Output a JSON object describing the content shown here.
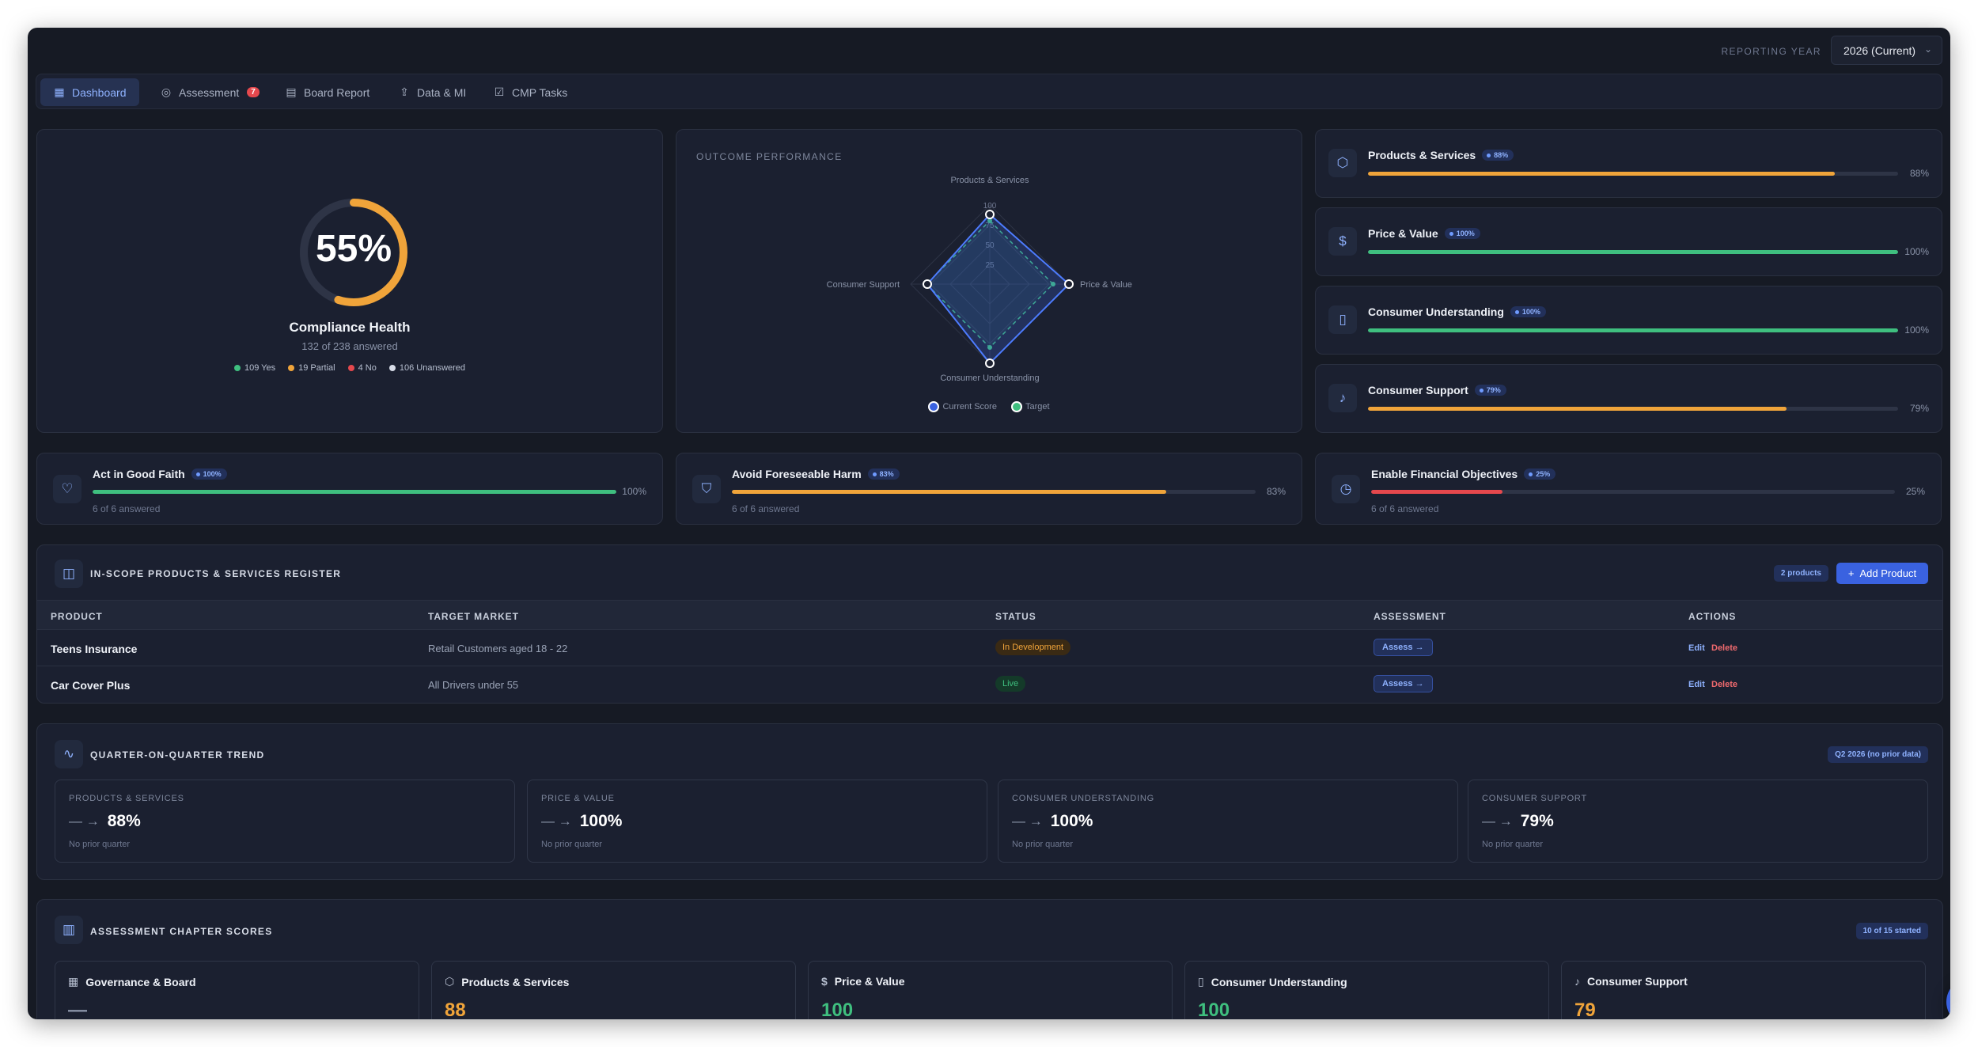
{
  "header": {
    "reporting_year_label": "REPORTING YEAR",
    "reporting_year_value": "2026 (Current)"
  },
  "tabs": [
    {
      "label": "Dashboard",
      "icon": "grid-icon",
      "active": true
    },
    {
      "label": "Assessment",
      "icon": "check-circle-icon",
      "badge": "7"
    },
    {
      "label": "Board Report",
      "icon": "document-icon"
    },
    {
      "label": "Data & MI",
      "icon": "upload-icon"
    },
    {
      "label": "CMP Tasks",
      "icon": "checkbox-icon"
    }
  ],
  "compliance": {
    "percent": 55,
    "value_text": "55%",
    "title": "Compliance Health",
    "subtitle": "132 of 238 answered",
    "legend": [
      {
        "label": "109 Yes",
        "color": "#3fbf7f"
      },
      {
        "label": "19 Partial",
        "color": "#f0a43a"
      },
      {
        "label": "4 No",
        "color": "#e5484d"
      },
      {
        "label": "106 Unanswered",
        "color": "#d8dde8"
      }
    ]
  },
  "outcome_performance": {
    "title": "OUTCOME PERFORMANCE",
    "axes": [
      "Products & Services",
      "Price & Value",
      "Consumer Understanding",
      "Consumer Support"
    ],
    "ticks": [
      "100",
      "75",
      "50",
      "25"
    ],
    "legend": {
      "current": "Current Score",
      "target": "Target"
    }
  },
  "chart_data": {
    "type": "radar",
    "categories": [
      "Products & Services",
      "Price & Value",
      "Consumer Understanding",
      "Consumer Support"
    ],
    "series": [
      {
        "name": "Current Score",
        "values": [
          88,
          100,
          100,
          79
        ]
      },
      {
        "name": "Target",
        "values": [
          80,
          80,
          80,
          80
        ]
      }
    ],
    "ylim": [
      0,
      100
    ],
    "legend": "bottom"
  },
  "outcomes": [
    {
      "name": "Products & Services",
      "pill": "88%",
      "pct": "88%",
      "value": 88,
      "color": "#f0a43a",
      "icon": "hexagon-icon"
    },
    {
      "name": "Price & Value",
      "pill": "100%",
      "pct": "100%",
      "value": 100,
      "color": "#3fbf7f",
      "icon": "dollar-icon"
    },
    {
      "name": "Consumer Understanding",
      "pill": "100%",
      "pct": "100%",
      "value": 100,
      "color": "#3fbf7f",
      "icon": "book-icon"
    },
    {
      "name": "Consumer Support",
      "pill": "79%",
      "pct": "79%",
      "value": 79,
      "color": "#f0a43a",
      "icon": "bell-icon"
    }
  ],
  "principles": [
    {
      "name": "Act in Good Faith",
      "pill": "100%",
      "pct": "100%",
      "value": 100,
      "color": "#3fbf7f",
      "sub": "6 of 6 answered",
      "icon": "heart-icon"
    },
    {
      "name": "Avoid Foreseeable Harm",
      "pill": "83%",
      "pct": "83%",
      "value": 83,
      "color": "#f0a43a",
      "sub": "6 of 6 answered",
      "icon": "shield-icon"
    },
    {
      "name": "Enable Financial Objectives",
      "pill": "25%",
      "pct": "25%",
      "value": 25,
      "color": "#e5484d",
      "sub": "6 of 6 answered",
      "icon": "clock-icon"
    }
  ],
  "register": {
    "title": "IN-SCOPE PRODUCTS & SERVICES REGISTER",
    "count": "2 products",
    "add_button": "Add Product",
    "columns": [
      "PRODUCT",
      "TARGET MARKET",
      "STATUS",
      "ASSESSMENT",
      "ACTIONS"
    ],
    "rows": [
      {
        "product": "Teens Insurance",
        "market": "Retail Customers aged 18 - 22",
        "status": "In Development",
        "assess": "Assess →",
        "edit": "Edit",
        "delete": "Delete"
      },
      {
        "product": "Car Cover Plus",
        "market": "All Drivers under 55",
        "status": "Live",
        "assess": "Assess →",
        "edit": "Edit",
        "delete": "Delete"
      }
    ]
  },
  "trend": {
    "title": "QUARTER-ON-QUARTER TREND",
    "badge": "Q2 2026 (no prior data)",
    "items": [
      {
        "label": "PRODUCTS & SERVICES",
        "value": "88%",
        "arrow": "— →",
        "sub": "No prior quarter"
      },
      {
        "label": "PRICE & VALUE",
        "value": "100%",
        "arrow": "— →",
        "sub": "No prior quarter"
      },
      {
        "label": "CONSUMER UNDERSTANDING",
        "value": "100%",
        "arrow": "— →",
        "sub": "No prior quarter"
      },
      {
        "label": "CONSUMER SUPPORT",
        "value": "79%",
        "arrow": "— →",
        "sub": "No prior quarter"
      }
    ]
  },
  "chapters": {
    "title": "ASSESSMENT CHAPTER SCORES",
    "badge": "10 of 15 started",
    "items": [
      {
        "name": "Governance & Board",
        "score": "—",
        "color": "#8a93a8",
        "icon": "building-icon"
      },
      {
        "name": "Products & Services",
        "score": "88",
        "color": "#f0a43a",
        "icon": "hexagon-icon"
      },
      {
        "name": "Price & Value",
        "score": "100",
        "color": "#3fbf7f",
        "icon": "dollar-icon"
      },
      {
        "name": "Consumer Understanding",
        "score": "100",
        "color": "#3fbf7f",
        "icon": "book-icon"
      },
      {
        "name": "Consumer Support",
        "score": "79",
        "color": "#f0a43a",
        "icon": "bell-icon"
      }
    ]
  },
  "colors": {
    "accent": "#3a62e0",
    "green": "#3fbf7f",
    "amber": "#f0a43a",
    "red": "#e5484d"
  }
}
